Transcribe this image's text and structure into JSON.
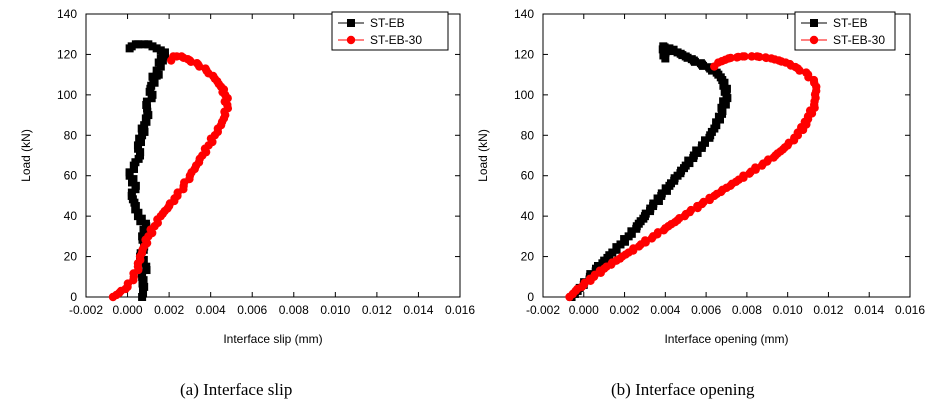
{
  "chart_data": [
    {
      "type": "scatter",
      "title": "",
      "xlabel": "Interface slip (mm)",
      "ylabel": "Load (kN)",
      "xlim": [
        -0.002,
        0.016
      ],
      "ylim": [
        0,
        140
      ],
      "xticks": [
        "-0.002",
        "0.000",
        "0.002",
        "0.004",
        "0.006",
        "0.008",
        "0.010",
        "0.012",
        "0.014",
        "0.016"
      ],
      "yticks": [
        "0",
        "20",
        "40",
        "60",
        "80",
        "100",
        "120",
        "140"
      ],
      "legend_position": "top-right",
      "series": [
        {
          "name": "ST-EB",
          "color": "#000000",
          "marker": "square",
          "x": [
            0.0007,
            0.0008,
            0.0007,
            0.0009,
            0.0006,
            0.0008,
            0.0007,
            0.0009,
            0.0005,
            0.0004,
            0.0002,
            0.0004,
            0.0001,
            0.0003,
            0.0006,
            0.0005,
            0.0007,
            0.0008,
            0.001,
            0.0009,
            0.0012,
            0.0011,
            0.0013,
            0.0012,
            0.0015,
            0.0014,
            0.0016,
            0.0015,
            0.0017,
            0.0016,
            0.0018,
            0.0017,
            0.0018,
            0.0016,
            0.0014,
            0.0012,
            0.001,
            0.0008,
            0.0004,
            0.0002,
            0.0001
          ],
          "y": [
            0,
            5,
            10,
            15,
            20,
            25,
            30,
            35,
            40,
            45,
            50,
            55,
            60,
            65,
            70,
            75,
            80,
            85,
            90,
            95,
            100,
            103,
            106,
            109,
            110,
            112,
            114,
            116,
            117,
            118,
            119,
            120,
            121,
            122,
            123,
            124,
            125,
            125,
            125,
            124,
            123
          ]
        },
        {
          "name": "ST-EB-30",
          "color": "#ff0000",
          "marker": "circle",
          "x": [
            -0.0007,
            -0.0004,
            0.0,
            0.0003,
            0.0005,
            0.0006,
            0.0008,
            0.001,
            0.0013,
            0.0016,
            0.002,
            0.0024,
            0.0027,
            0.003,
            0.0033,
            0.0036,
            0.0039,
            0.0042,
            0.0045,
            0.0047,
            0.0048,
            0.0047,
            0.0045,
            0.0042,
            0.0038,
            0.0034,
            0.003,
            0.0026,
            0.0022,
            0.0021
          ],
          "y": [
            0,
            2,
            5,
            10,
            15,
            20,
            25,
            30,
            35,
            40,
            45,
            50,
            55,
            60,
            65,
            70,
            75,
            80,
            85,
            90,
            95,
            100,
            104,
            108,
            112,
            115,
            117,
            119,
            119,
            117
          ]
        }
      ]
    },
    {
      "type": "scatter",
      "title": "",
      "xlabel": "Interface opening (mm)",
      "ylabel": "Load (kN)",
      "xlim": [
        -0.002,
        0.016
      ],
      "ylim": [
        0,
        140
      ],
      "xticks": [
        "-0.002",
        "0.000",
        "0.002",
        "0.004",
        "0.006",
        "0.008",
        "0.010",
        "0.012",
        "0.014",
        "0.016"
      ],
      "yticks": [
        "0",
        "20",
        "40",
        "60",
        "80",
        "100",
        "120",
        "140"
      ],
      "legend_position": "top-right",
      "series": [
        {
          "name": "ST-EB",
          "color": "#000000",
          "marker": "square",
          "x": [
            -0.0006,
            -0.0003,
            0.0,
            0.0003,
            0.0006,
            0.001,
            0.0014,
            0.0018,
            0.0022,
            0.0026,
            0.003,
            0.0034,
            0.0038,
            0.0042,
            0.0046,
            0.005,
            0.0054,
            0.0058,
            0.0062,
            0.0065,
            0.0068,
            0.007,
            0.0069,
            0.0066,
            0.0062,
            0.0058,
            0.0054,
            0.005,
            0.0046,
            0.0042,
            0.0039,
            0.004
          ],
          "y": [
            0,
            3,
            6,
            10,
            14,
            18,
            22,
            26,
            30,
            35,
            40,
            45,
            50,
            55,
            60,
            65,
            70,
            75,
            80,
            85,
            92,
            100,
            106,
            110,
            113,
            115,
            117,
            119,
            121,
            123,
            124,
            118
          ]
        },
        {
          "name": "ST-EB-30",
          "color": "#ff0000",
          "marker": "circle",
          "x": [
            -0.0007,
            -0.0004,
            0.0,
            0.0005,
            0.001,
            0.0016,
            0.0022,
            0.0028,
            0.0034,
            0.004,
            0.0046,
            0.0052,
            0.0058,
            0.0064,
            0.007,
            0.0076,
            0.0082,
            0.0088,
            0.0094,
            0.01,
            0.0105,
            0.011,
            0.0113,
            0.0114,
            0.0113,
            0.011,
            0.0105,
            0.0099,
            0.0092,
            0.0085,
            0.0078,
            0.0071,
            0.0066,
            0.0064
          ],
          "y": [
            0,
            3,
            6,
            10,
            14,
            18,
            22,
            26,
            30,
            34,
            38,
            42,
            46,
            50,
            54,
            58,
            62,
            66,
            70,
            75,
            80,
            88,
            95,
            102,
            106,
            110,
            113,
            116,
            118,
            119,
            119,
            118,
            116,
            114
          ]
        }
      ]
    }
  ],
  "captions": {
    "a": "(a) Interface slip",
    "b": "(b) Interface opening"
  }
}
